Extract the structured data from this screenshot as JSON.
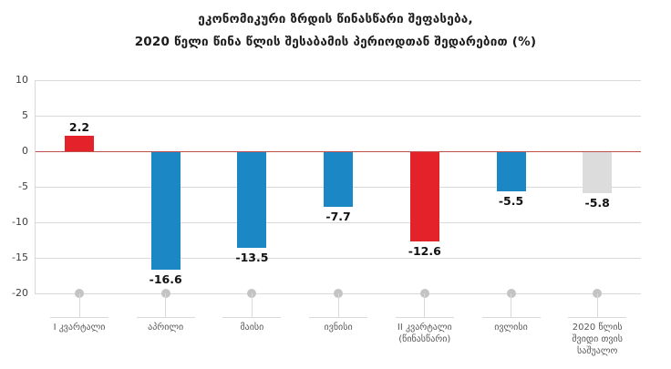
{
  "chart_data": {
    "type": "bar",
    "title_line1": "ეკონომიკური ზრდის წინასწარი შეფასება,",
    "title_line2": "2020 წელი წინა წლის შესაბამის პერიოდთან შედარებით (%)",
    "categories": [
      "I კვარტალი",
      "აპრილი",
      "მაისი",
      "ივნისი",
      "II კვარტალი\n(წინასწარი)",
      "ივლისი",
      "2020 წლის\nშვიდი თვის\nსაშუალო"
    ],
    "values": [
      2.2,
      -16.6,
      -13.5,
      -7.7,
      -12.6,
      -5.5,
      -5.8
    ],
    "value_labels": [
      "2.2",
      "-16.6",
      "-13.5",
      "-7.7",
      "-12.6",
      "-5.5",
      "-5.8"
    ],
    "bar_colors": [
      "#e42229",
      "#1b87c5",
      "#1b87c5",
      "#1b87c5",
      "#e42229",
      "#1b87c5",
      "#dcdcdc"
    ],
    "y_ticks": [
      10,
      5,
      0,
      -5,
      -10,
      -15,
      -20
    ],
    "ylim": [
      -20,
      10
    ],
    "grid": true,
    "legend": "none",
    "colors": {
      "red_bar": "#e42229",
      "blue_bar": "#1b87c5",
      "gray_bar": "#dcdcdc",
      "zero_line": "#c0504d",
      "gridline": "#d9d9d9",
      "axis_line": "#d9d9d9",
      "category_marker": "#c4c4c4",
      "title_text": "#1c1c1c",
      "tick_text": "#404040",
      "category_text": "#595959",
      "value_text": "#111111"
    }
  }
}
